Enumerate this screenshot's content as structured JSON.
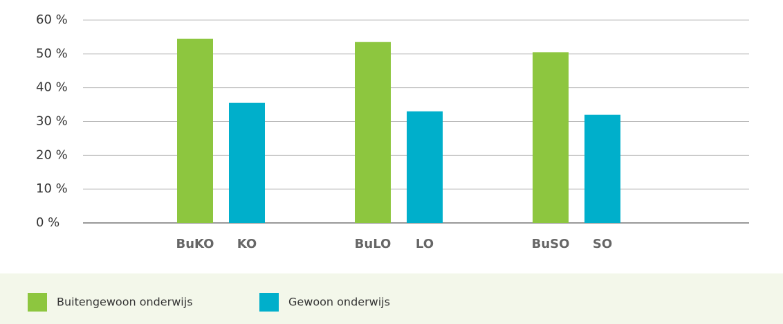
{
  "chart_data": {
    "type": "bar",
    "categories": [
      "BuKO",
      "KO",
      "BuLO",
      "LO",
      "BuSO",
      "SO"
    ],
    "series": [
      {
        "name": "Buitengewoon onderwijs",
        "color": "#8dc63f",
        "values": [
          54.5,
          null,
          53.5,
          null,
          50.5,
          null
        ]
      },
      {
        "name": "Gewoon onderwijs",
        "color": "#00afcb",
        "values": [
          null,
          35.5,
          null,
          33,
          null,
          32
        ]
      }
    ],
    "ylim": [
      0,
      60
    ],
    "yticks": [
      {
        "value": 0,
        "label": "0 %"
      },
      {
        "value": 10,
        "label": "10 %"
      },
      {
        "value": 20,
        "label": "20 %"
      },
      {
        "value": 30,
        "label": "30 %"
      },
      {
        "value": 40,
        "label": "40 %"
      },
      {
        "value": 50,
        "label": "50 %"
      },
      {
        "value": 60,
        "label": "60 %"
      }
    ],
    "grid": true
  }
}
